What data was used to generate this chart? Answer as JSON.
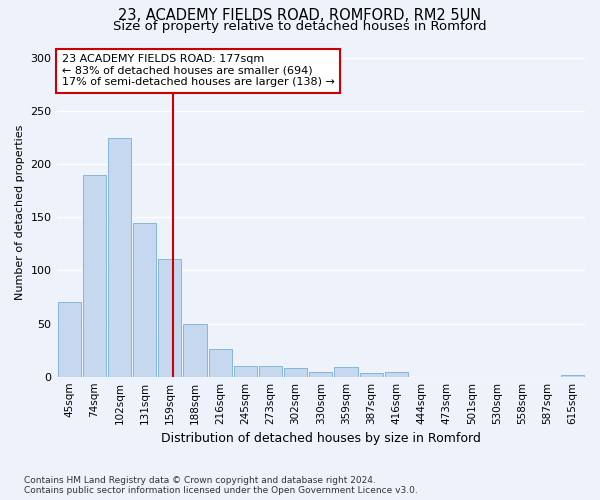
{
  "title1": "23, ACADEMY FIELDS ROAD, ROMFORD, RM2 5UN",
  "title2": "Size of property relative to detached houses in Romford",
  "xlabel": "Distribution of detached houses by size in Romford",
  "ylabel": "Number of detached properties",
  "bin_labels": [
    "45sqm",
    "74sqm",
    "102sqm",
    "131sqm",
    "159sqm",
    "188sqm",
    "216sqm",
    "245sqm",
    "273sqm",
    "302sqm",
    "330sqm",
    "359sqm",
    "387sqm",
    "416sqm",
    "444sqm",
    "473sqm",
    "501sqm",
    "530sqm",
    "558sqm",
    "587sqm",
    "615sqm"
  ],
  "bar_values": [
    70,
    190,
    225,
    145,
    111,
    50,
    26,
    10,
    10,
    8,
    4,
    9,
    3,
    4,
    0,
    0,
    0,
    0,
    0,
    0,
    2
  ],
  "bar_color": "#c5d8f0",
  "bar_edgecolor": "#7aafd4",
  "marker_line_color": "#cc0000",
  "annotation_line1": "23 ACADEMY FIELDS ROAD: 177sqm",
  "annotation_line2": "← 83% of detached houses are smaller (694)",
  "annotation_line3": "17% of semi-detached houses are larger (138) →",
  "annotation_box_facecolor": "#ffffff",
  "annotation_box_edgecolor": "#cc0000",
  "ylim": [
    0,
    310
  ],
  "yticks": [
    0,
    50,
    100,
    150,
    200,
    250,
    300
  ],
  "footnote1": "Contains HM Land Registry data © Crown copyright and database right 2024.",
  "footnote2": "Contains public sector information licensed under the Open Government Licence v3.0.",
  "bg_color": "#eef2fb",
  "grid_color": "#ffffff",
  "title1_fontsize": 10.5,
  "title2_fontsize": 9.5,
  "ylabel_fontsize": 8,
  "xlabel_fontsize": 9,
  "tick_fontsize": 7.5,
  "annot_fontsize": 8,
  "footnote_fontsize": 6.5
}
